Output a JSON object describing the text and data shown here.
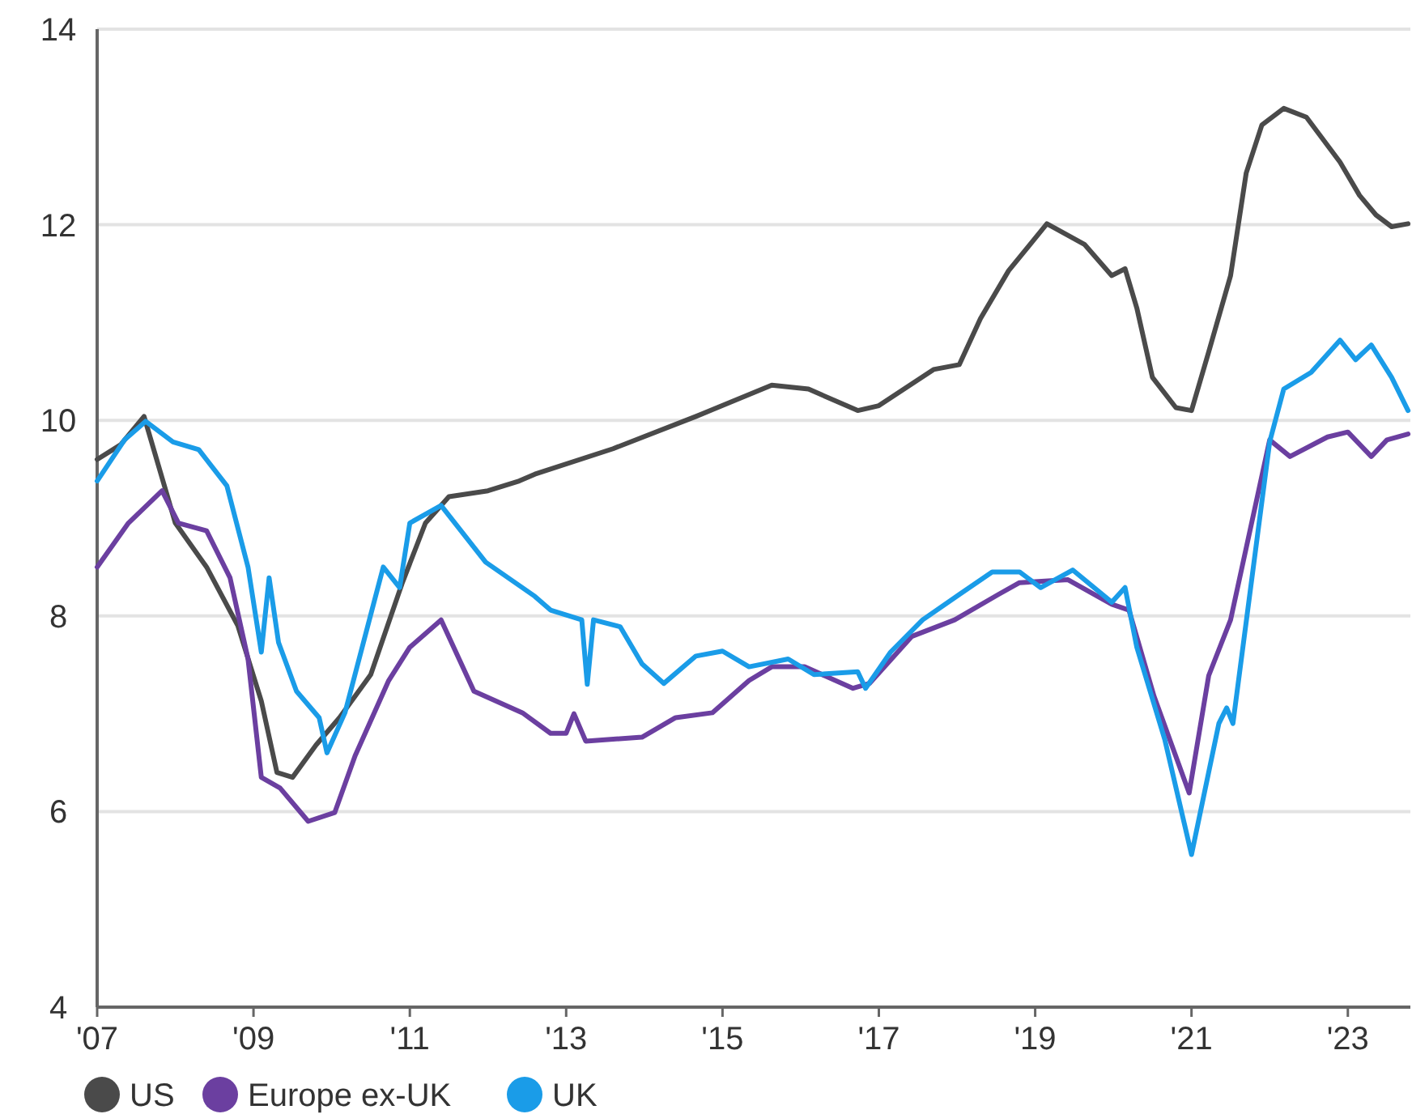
{
  "chart_data": {
    "type": "line",
    "xlim": [
      2007,
      2023.8
    ],
    "xticks": [
      {
        "value": 2007,
        "label": "'07"
      },
      {
        "value": 2009,
        "label": "'09"
      },
      {
        "value": 2011,
        "label": "'11"
      },
      {
        "value": 2013,
        "label": "'13"
      },
      {
        "value": 2015,
        "label": "'15"
      },
      {
        "value": 2017,
        "label": "'17"
      },
      {
        "value": 2019,
        "label": "'19"
      },
      {
        "value": 2021,
        "label": "'21"
      },
      {
        "value": 2023,
        "label": "'23"
      }
    ],
    "ylim": [
      4,
      14
    ],
    "yticks": [
      4,
      6,
      8,
      10,
      12,
      14
    ],
    "grid": "y",
    "legend": "bottom",
    "marker": "none",
    "line_style": "solid",
    "series": [
      {
        "name": "US",
        "color": "#4a4a4a",
        "x": [
          2007.0,
          2007.3,
          2007.6,
          2008.0,
          2008.4,
          2008.8,
          2009.1,
          2009.3,
          2009.5,
          2009.8,
          2010.1,
          2010.5,
          2010.9,
          2011.2,
          2011.5,
          2012.0,
          2012.4,
          2012.6,
          2013.6,
          2014.66,
          2015.63,
          2016.1,
          2016.73,
          2017.0,
          2017.7,
          2018.03,
          2018.3,
          2018.66,
          2019.15,
          2019.63,
          2019.98,
          2020.15,
          2020.3,
          2020.5,
          2020.8,
          2021.0,
          2021.22,
          2021.5,
          2021.7,
          2021.9,
          2022.18,
          2022.47,
          2022.9,
          2023.15,
          2023.36,
          2023.56,
          2023.77
        ],
        "values": [
          9.6,
          9.75,
          10.04,
          8.95,
          8.5,
          7.9,
          7.13,
          6.4,
          6.35,
          6.68,
          6.96,
          7.4,
          8.33,
          8.95,
          9.22,
          9.28,
          9.38,
          9.45,
          9.71,
          10.04,
          10.36,
          10.32,
          10.1,
          10.15,
          10.52,
          10.57,
          11.04,
          11.53,
          12.01,
          11.8,
          11.48,
          11.55,
          11.15,
          10.44,
          10.13,
          10.1,
          10.7,
          11.48,
          12.53,
          13.02,
          13.19,
          13.1,
          12.64,
          12.3,
          12.1,
          11.98,
          12.01
        ]
      },
      {
        "name": "Europe ex-UK",
        "color": "#6b3fa0",
        "x": [
          2007.0,
          2007.4,
          2007.83,
          2008.04,
          2008.4,
          2008.7,
          2008.93,
          2009.1,
          2009.34,
          2009.7,
          2010.04,
          2010.3,
          2010.73,
          2011.0,
          2011.4,
          2011.82,
          2012.44,
          2012.8,
          2013.0,
          2013.1,
          2013.25,
          2013.97,
          2014.4,
          2014.87,
          2015.34,
          2015.63,
          2016.05,
          2016.67,
          2016.88,
          2017.42,
          2017.97,
          2018.53,
          2018.8,
          2019.42,
          2019.98,
          2020.2,
          2020.52,
          2020.97,
          2021.22,
          2021.5,
          2022.0,
          2022.26,
          2022.74,
          2023.0,
          2023.3,
          2023.5,
          2023.77
        ],
        "values": [
          8.5,
          8.95,
          9.28,
          8.95,
          8.87,
          8.39,
          7.56,
          6.35,
          6.24,
          5.9,
          5.99,
          6.57,
          7.34,
          7.68,
          7.96,
          7.23,
          7.01,
          6.8,
          6.8,
          7.0,
          6.72,
          6.76,
          6.96,
          7.01,
          7.34,
          7.48,
          7.48,
          7.26,
          7.31,
          7.79,
          7.96,
          8.22,
          8.34,
          8.37,
          8.12,
          8.06,
          7.18,
          6.19,
          7.39,
          7.96,
          9.8,
          9.63,
          9.83,
          9.88,
          9.63,
          9.8,
          9.86
        ]
      },
      {
        "name": "UK",
        "color": "#1a9ce8",
        "x": [
          2007.0,
          2007.35,
          2007.62,
          2007.97,
          2008.3,
          2008.66,
          2008.93,
          2009.1,
          2009.2,
          2009.32,
          2009.55,
          2009.84,
          2009.94,
          2010.17,
          2010.66,
          2010.87,
          2011.0,
          2011.4,
          2011.97,
          2012.6,
          2012.8,
          2013.2,
          2013.27,
          2013.35,
          2013.69,
          2013.97,
          2014.25,
          2014.66,
          2015.0,
          2015.34,
          2015.84,
          2016.17,
          2016.73,
          2016.83,
          2017.15,
          2017.56,
          2018.03,
          2018.45,
          2018.8,
          2019.07,
          2019.48,
          2019.98,
          2020.15,
          2020.3,
          2020.66,
          2021.0,
          2021.35,
          2021.45,
          2021.53,
          2022.0,
          2022.18,
          2022.53,
          2022.9,
          2023.1,
          2023.3,
          2023.56,
          2023.77
        ],
        "values": [
          9.38,
          9.8,
          9.99,
          9.78,
          9.7,
          9.33,
          8.5,
          7.63,
          8.39,
          7.73,
          7.23,
          6.96,
          6.6,
          7.01,
          8.5,
          8.29,
          8.95,
          9.13,
          8.55,
          8.2,
          8.06,
          7.96,
          7.3,
          7.96,
          7.89,
          7.51,
          7.31,
          7.59,
          7.64,
          7.48,
          7.56,
          7.4,
          7.43,
          7.26,
          7.63,
          7.96,
          8.22,
          8.45,
          8.45,
          8.29,
          8.47,
          8.14,
          8.29,
          7.68,
          6.73,
          5.56,
          6.9,
          7.06,
          6.9,
          9.78,
          10.32,
          10.49,
          10.82,
          10.62,
          10.77,
          10.44,
          10.1
        ]
      }
    ]
  }
}
